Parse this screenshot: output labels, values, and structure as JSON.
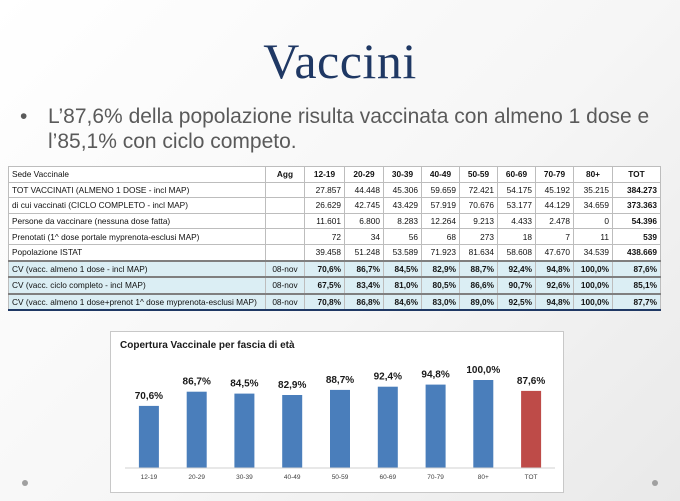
{
  "slide": {
    "title": "Vaccini",
    "bullet": "L’87,6% della popolazione risulta vaccinata con almeno 1 dose e l’85,1% con ciclo competo."
  },
  "table": {
    "headers": [
      "Sede Vaccinale",
      "Agg",
      "12-19",
      "20-29",
      "30-39",
      "40-49",
      "50-59",
      "60-69",
      "70-79",
      "80+",
      "TOT"
    ],
    "rows": [
      {
        "label": "TOT VACCINATI (ALMENO 1 DOSE - incl MAP)",
        "agg": "",
        "values": [
          "27.857",
          "44.448",
          "45.306",
          "59.659",
          "72.421",
          "54.175",
          "45.192",
          "35.215"
        ],
        "tot": "384.273"
      },
      {
        "label": "di cui vaccinati (CICLO COMPLETO - incl MAP)",
        "agg": "",
        "values": [
          "26.629",
          "42.745",
          "43.429",
          "57.919",
          "70.676",
          "53.177",
          "44.129",
          "34.659"
        ],
        "tot": "373.363"
      },
      {
        "label": "Persone da vaccinare (nessuna dose fatta)",
        "agg": "",
        "values": [
          "11.601",
          "6.800",
          "8.283",
          "12.264",
          "9.213",
          "4.433",
          "2.478",
          "0"
        ],
        "tot": "54.396"
      },
      {
        "label": "Prenotati (1^ dose portale myprenota-esclusi MAP)",
        "agg": "",
        "values": [
          "72",
          "34",
          "56",
          "68",
          "273",
          "18",
          "7",
          "11"
        ],
        "tot": "539"
      },
      {
        "label": "Popolazione ISTAT",
        "agg": "",
        "values": [
          "39.458",
          "51.248",
          "53.589",
          "71.923",
          "81.634",
          "58.608",
          "47.670",
          "34.539"
        ],
        "tot": "438.669"
      }
    ],
    "cv_rows": [
      {
        "label": "CV (vacc. almeno 1 dose - incl MAP)",
        "agg": "08-nov",
        "values": [
          "70,6%",
          "86,7%",
          "84,5%",
          "82,9%",
          "88,7%",
          "92,4%",
          "94,8%",
          "100,0%"
        ],
        "tot": "87,6%"
      },
      {
        "label": "CV (vacc. ciclo completo - incl MAP)",
        "agg": "08-nov",
        "values": [
          "67,5%",
          "83,4%",
          "81,0%",
          "80,5%",
          "86,6%",
          "90,7%",
          "92,6%",
          "100,0%"
        ],
        "tot": "85,1%"
      },
      {
        "label": "CV (vacc. almeno 1 dose+prenot 1^ dose myprenota-esclusi MAP)",
        "agg": "08-nov",
        "values": [
          "70,8%",
          "86,8%",
          "84,6%",
          "83,0%",
          "89,0%",
          "92,5%",
          "94,8%",
          "100,0%"
        ],
        "tot": "87,7%"
      }
    ]
  },
  "chart_data": {
    "type": "bar",
    "title": "Copertura Vaccinale per fascia di età",
    "categories": [
      "12-19",
      "20-29",
      "30-39",
      "40-49",
      "50-59",
      "60-69",
      "70-79",
      "80+",
      "TOT"
    ],
    "values": [
      70.6,
      86.7,
      84.5,
      82.9,
      88.7,
      92.4,
      94.8,
      100.0,
      87.6
    ],
    "data_labels": [
      "70,6%",
      "86,7%",
      "84,5%",
      "82,9%",
      "88,7%",
      "92,4%",
      "94,8%",
      "100,0%",
      "87,6%"
    ],
    "colors": {
      "bar": "#4a7ebb",
      "highlight": "#be4b48"
    },
    "highlight_category": "TOT",
    "xlabel": "",
    "ylabel": "",
    "ylim": [
      0,
      100
    ],
    "grid": false
  },
  "colors": {
    "title": "#1f3864",
    "cv_row_background": "#dbeef4"
  }
}
